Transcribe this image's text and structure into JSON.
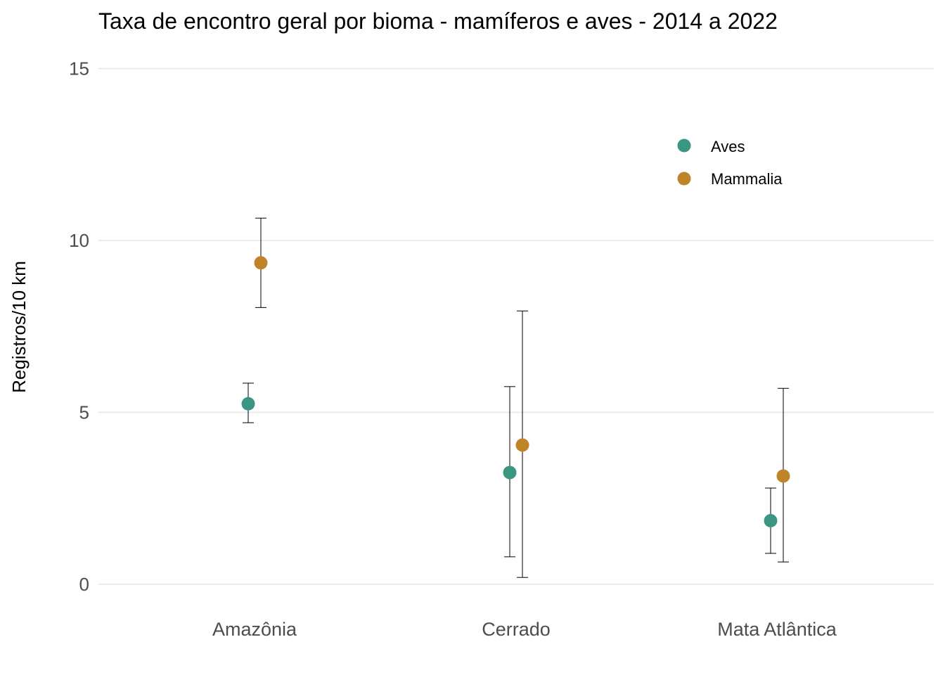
{
  "chart_data": {
    "type": "scatter",
    "title": "Taxa de encontro geral por bioma - mamíferos e aves - 2014 a 2022",
    "xlabel": "",
    "ylabel": "Registros/10 km",
    "ylim": [
      -0.5,
      15
    ],
    "yticks": [
      0,
      5,
      10,
      15
    ],
    "categories": [
      "Amazônia",
      "Cerrado",
      "Mata Atlântica"
    ],
    "grid": true,
    "legend_position": "top-right",
    "error_bars": true,
    "series": [
      {
        "name": "Aves",
        "color": "#3a9682",
        "values": [
          5.25,
          3.25,
          1.85
        ],
        "lower": [
          4.7,
          0.8,
          0.9
        ],
        "upper": [
          5.85,
          5.75,
          2.8
        ]
      },
      {
        "name": "Mammalia",
        "color": "#c08428",
        "values": [
          9.35,
          4.05,
          3.15
        ],
        "lower": [
          8.05,
          0.2,
          0.65
        ],
        "upper": [
          10.65,
          7.95,
          5.7
        ]
      }
    ]
  }
}
